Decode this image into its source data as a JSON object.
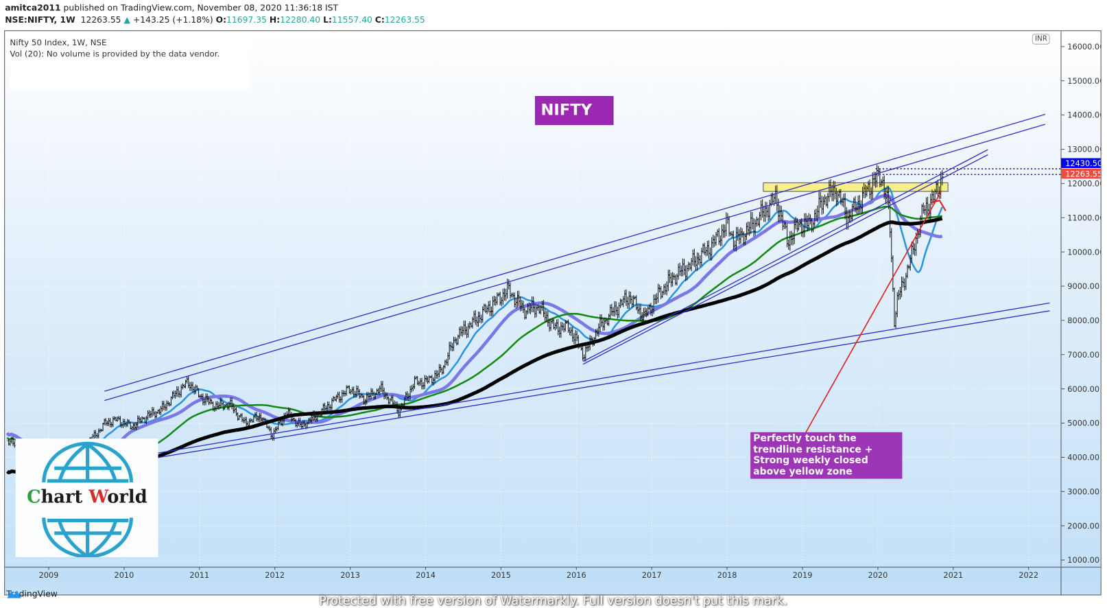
{
  "header": {
    "publisher": "amitca2011",
    "published_text": "published on TradingView.com, November 08, 2020 11:36:18 IST",
    "symbol": "NSE:NIFTY, 1W",
    "last": "12263.55",
    "change": "+143.25 (+1.18%)",
    "o_label": "O:",
    "o": "11697.35",
    "h_label": "H:",
    "h": "12280.40",
    "l_label": "L:",
    "l": "11557.40",
    "c_label": "C:",
    "c": "12263.55"
  },
  "legend": {
    "title": "Nifty 50 Index, 1W, NSE",
    "vol": "Vol (20): No volume is provided by the data vendor."
  },
  "currency": "INR",
  "label_nifty": "NIFTY",
  "annotation": "Perfectly touch the trendline resistance + Strong weekly closed above yellow zone",
  "logo": {
    "c": "C",
    "hart": "hart ",
    "w": "W",
    "orld": "orld"
  },
  "footer": {
    "brand": "TradingView"
  },
  "watermark": "Protected with free version of Watermarkly. Full version doesn't put this mark.",
  "price_labels": {
    "high": "12430.50",
    "last": "12263.55"
  },
  "colors": {
    "up": "#26a69a",
    "bars": "#111111",
    "ema": "#2b95e0",
    "ma_lavender": "#7a78e6",
    "ma_green": "#138a13",
    "ma_black": "#000000",
    "channel": "#3030c8",
    "zone": "#f7f08a",
    "red": "#e02020",
    "label_blue": "#0000ee",
    "label_red": "#ef4b3f"
  },
  "chart_data": {
    "type": "ohlc",
    "title": "Nifty 50 Index, 1W, NSE",
    "x_ticks": [
      "2009",
      "2010",
      "2011",
      "2012",
      "2013",
      "2014",
      "2015",
      "2016",
      "2017",
      "2018",
      "2019",
      "2020",
      "2021",
      "2022"
    ],
    "y_ticks": [
      "1000.00",
      "2000.00",
      "3000.00",
      "4000.00",
      "5000.00",
      "6000.00",
      "7000.00",
      "8000.00",
      "9000.00",
      "10000.00",
      "11000.00",
      "12000.00",
      "13000.00",
      "14000.00",
      "15000.00",
      "16000.00"
    ],
    "xlim": [
      2008.44,
      2022.45
    ],
    "ylim": [
      1000,
      16000
    ],
    "close_keypoints": [
      [
        2008.45,
        4500
      ],
      [
        2008.6,
        4300
      ],
      [
        2008.75,
        3600
      ],
      [
        2008.9,
        3200
      ],
      [
        2009.1,
        2900
      ],
      [
        2009.25,
        3300
      ],
      [
        2009.4,
        4300
      ],
      [
        2009.6,
        4600
      ],
      [
        2009.75,
        5000
      ],
      [
        2009.9,
        5100
      ],
      [
        2010.1,
        4900
      ],
      [
        2010.3,
        5200
      ],
      [
        2010.5,
        5400
      ],
      [
        2010.7,
        5900
      ],
      [
        2010.85,
        6200
      ],
      [
        2011.0,
        5800
      ],
      [
        2011.2,
        5500
      ],
      [
        2011.4,
        5550
      ],
      [
        2011.6,
        5000
      ],
      [
        2011.8,
        5200
      ],
      [
        2011.97,
        4650
      ],
      [
        2012.15,
        5300
      ],
      [
        2012.35,
        4900
      ],
      [
        2012.6,
        5300
      ],
      [
        2012.8,
        5700
      ],
      [
        2013.0,
        6000
      ],
      [
        2013.2,
        5700
      ],
      [
        2013.4,
        6000
      ],
      [
        2013.65,
        5350
      ],
      [
        2013.85,
        6200
      ],
      [
        2014.0,
        6200
      ],
      [
        2014.2,
        6500
      ],
      [
        2014.4,
        7500
      ],
      [
        2014.6,
        7900
      ],
      [
        2014.85,
        8400
      ],
      [
        2015.1,
        8900
      ],
      [
        2015.3,
        8300
      ],
      [
        2015.5,
        8400
      ],
      [
        2015.7,
        7800
      ],
      [
        2015.9,
        7800
      ],
      [
        2016.1,
        7000
      ],
      [
        2016.3,
        7800
      ],
      [
        2016.5,
        8300
      ],
      [
        2016.7,
        8700
      ],
      [
        2016.9,
        8100
      ],
      [
        2017.1,
        8800
      ],
      [
        2017.3,
        9300
      ],
      [
        2017.5,
        9600
      ],
      [
        2017.8,
        10200
      ],
      [
        2018.0,
        10800
      ],
      [
        2018.1,
        10300
      ],
      [
        2018.3,
        10700
      ],
      [
        2018.5,
        11200
      ],
      [
        2018.65,
        11600
      ],
      [
        2018.8,
        10300
      ],
      [
        2018.95,
        10800
      ],
      [
        2019.1,
        10800
      ],
      [
        2019.3,
        11600
      ],
      [
        2019.45,
        11800
      ],
      [
        2019.6,
        11000
      ],
      [
        2019.8,
        11600
      ],
      [
        2019.95,
        12100
      ],
      [
        2020.05,
        12200
      ],
      [
        2020.15,
        11200
      ],
      [
        2020.22,
        8000
      ],
      [
        2020.26,
        8600
      ],
      [
        2020.35,
        9200
      ],
      [
        2020.45,
        9900
      ],
      [
        2020.6,
        11200
      ],
      [
        2020.75,
        11600
      ],
      [
        2020.86,
        12263.55
      ]
    ],
    "moving_averages": [
      {
        "name": "EMA 20",
        "color": "#2b95e0",
        "period": 20
      },
      {
        "name": "MA 50",
        "color": "#7a78e6",
        "period": 40
      },
      {
        "name": "MA 100",
        "color": "#138a13",
        "period": 80
      },
      {
        "name": "MA 200",
        "color": "#000000",
        "period": 150
      }
    ],
    "trendlines": [
      {
        "name": "upper-channel-1",
        "points": [
          [
            2009.74,
            5930
          ],
          [
            2022.22,
            14020
          ]
        ]
      },
      {
        "name": "upper-channel-2",
        "points": [
          [
            2009.74,
            5660
          ],
          [
            2022.22,
            13730
          ]
        ]
      },
      {
        "name": "lower-channel-1",
        "points": [
          [
            2010.19,
            4030
          ],
          [
            2022.28,
            8510
          ]
        ]
      },
      {
        "name": "lower-channel-2",
        "points": [
          [
            2010.19,
            3900
          ],
          [
            2022.28,
            8280
          ]
        ]
      },
      {
        "name": "inner-rising-1",
        "points": [
          [
            2016.09,
            6800
          ],
          [
            2021.46,
            12990
          ]
        ]
      },
      {
        "name": "inner-rising-2",
        "points": [
          [
            2016.09,
            6720
          ],
          [
            2021.46,
            12840
          ]
        ]
      }
    ],
    "red_line": [
      [
        2019.04,
        4710
      ],
      [
        2020.84,
        11770
      ]
    ],
    "resistance_zone": {
      "x": [
        2018.48,
        2020.93
      ],
      "y": [
        11770,
        12020
      ]
    },
    "dotted_levels": [
      12430.5,
      12263.55
    ],
    "grid": true
  }
}
